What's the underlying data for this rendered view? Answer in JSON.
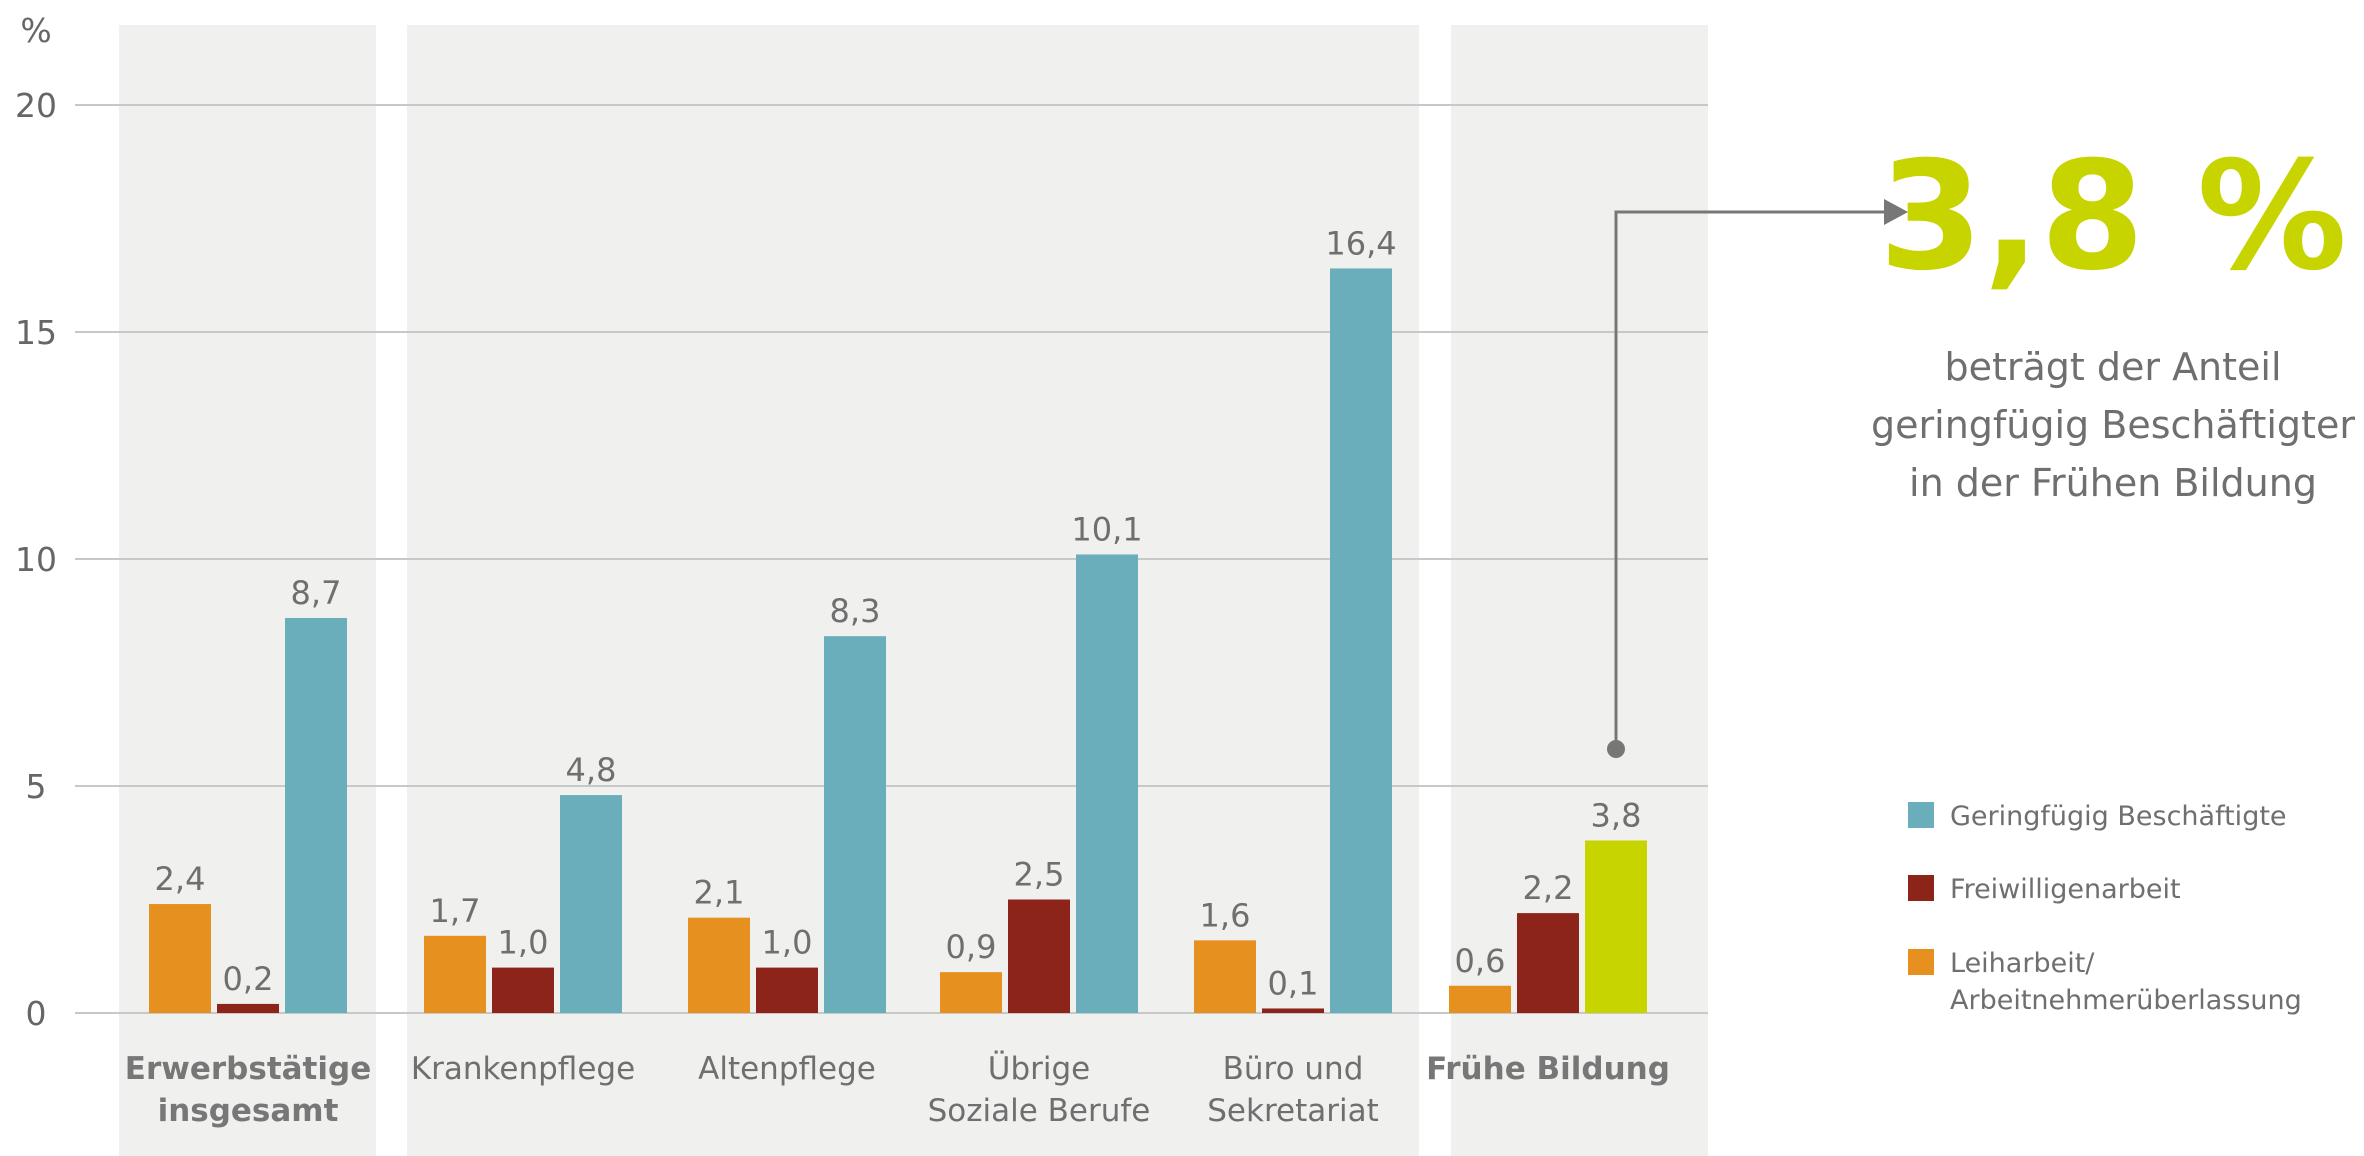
{
  "chart_data": {
    "type": "bar",
    "ylabel": "%",
    "ylim": [
      0,
      20
    ],
    "yticks": [
      0,
      5,
      10,
      15,
      20
    ],
    "grid": true,
    "legend_position": "right",
    "categories": [
      {
        "label": "Erwerbstätige\ninsgesamt",
        "bold": true
      },
      {
        "label": "Krankenpflege",
        "bold": false
      },
      {
        "label": "Altenpflege",
        "bold": false
      },
      {
        "label": "Übrige\nSoziale Berufe",
        "bold": false
      },
      {
        "label": "Büro und\nSekretariat",
        "bold": false
      },
      {
        "label": "Frühe Bildung",
        "bold": true
      }
    ],
    "series": [
      {
        "name": "Leiharbeit/\nArbeitnehmerüberlassung",
        "color": "#e5901f",
        "values": [
          2.4,
          1.7,
          2.1,
          0.9,
          1.6,
          0.6
        ],
        "labels": [
          "2,4",
          "1,7",
          "2,1",
          "0,9",
          "1,6",
          "0,6"
        ]
      },
      {
        "name": "Freiwilligenarbeit",
        "color": "#8c2419",
        "values": [
          0.2,
          1.0,
          1.0,
          2.5,
          0.1,
          2.2
        ],
        "labels": [
          "0,2",
          "1,0",
          "1,0",
          "2,5",
          "0,1",
          "2,2"
        ]
      },
      {
        "name": "Geringfügig Beschäftigte",
        "color": "#6aaebb",
        "values": [
          8.7,
          4.8,
          8.3,
          10.1,
          16.4,
          3.8
        ],
        "labels": [
          "8,7",
          "4,8",
          "8,3",
          "10,1",
          "16,4",
          "3,8"
        ]
      }
    ],
    "highlight": {
      "category_index": 5,
      "series_index": 2,
      "color": "#c8d400"
    },
    "legend_order": [
      "Geringfügig Beschäftigte",
      "Freiwilligenarbeit",
      "Leiharbeit/\nArbeitnehmerüberlassung"
    ],
    "callout": {
      "value": "3,8 %",
      "text": [
        "beträgt der Anteil",
        "geringfügig Beschäftigter",
        "in der Frühen Bildung"
      ]
    },
    "colors": {
      "panel_bg": "#f0f0ef",
      "grid": "#c8c8c8",
      "text": "#6f6f6f",
      "callout_line": "#777777"
    }
  }
}
